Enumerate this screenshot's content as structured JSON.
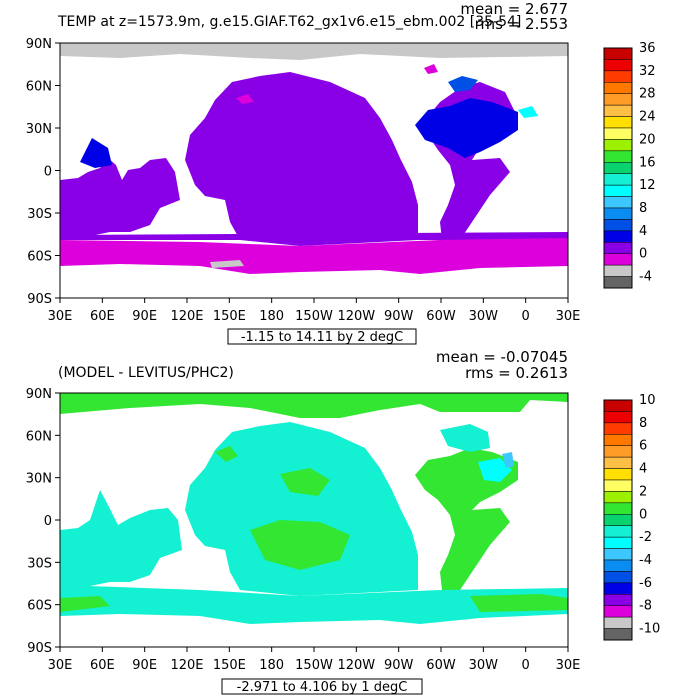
{
  "panels": [
    {
      "title": "TEMP at z=1573.9m, g.e15.GIAF.T62_gx1v6.e15_ebm.002 [35-54]",
      "mean_text": "mean = 2.677",
      "rms_text": "rms = 2.553",
      "range_text": "-1.15 to 14.11 by 2 degC",
      "colorbar_labels": [
        "36",
        "32",
        "28",
        "24",
        "20",
        "16",
        "12",
        "8",
        "4",
        "0",
        "-4"
      ],
      "ocean_color": "#8a00e6"
    },
    {
      "title": "(MODEL - LEVITUS/PHC2)",
      "mean_text": "mean = -0.07045",
      "rms_text": "rms = 0.2613",
      "range_text": "-2.971 to 4.106 by 1 degC",
      "colorbar_labels": [
        "10",
        "8",
        "6",
        "4",
        "2",
        "0",
        "-2",
        "-4",
        "-6",
        "-8",
        "-10"
      ],
      "ocean_color": "#14f0d2"
    }
  ],
  "lat_labels": [
    "90N",
    "60N",
    "30N",
    "0",
    "30S",
    "60S",
    "90S"
  ],
  "lon_labels": [
    "30E",
    "60E",
    "90E",
    "120E",
    "150E",
    "180",
    "150W",
    "120W",
    "90W",
    "60W",
    "30W",
    "0",
    "30E"
  ],
  "colorbar_colors": [
    "#c80000",
    "#ee0000",
    "#ff3c00",
    "#ff7800",
    "#ff9c28",
    "#ffbe46",
    "#ffe000",
    "#ffff64",
    "#9cf000",
    "#32e632",
    "#0ad26e",
    "#14f0d2",
    "#00ffff",
    "#3cc8ff",
    "#0a8cf0",
    "#0050e6",
    "#0000e6",
    "#8a00e6",
    "#dc00dc",
    "#c8c8c8",
    "#646464"
  ]
}
